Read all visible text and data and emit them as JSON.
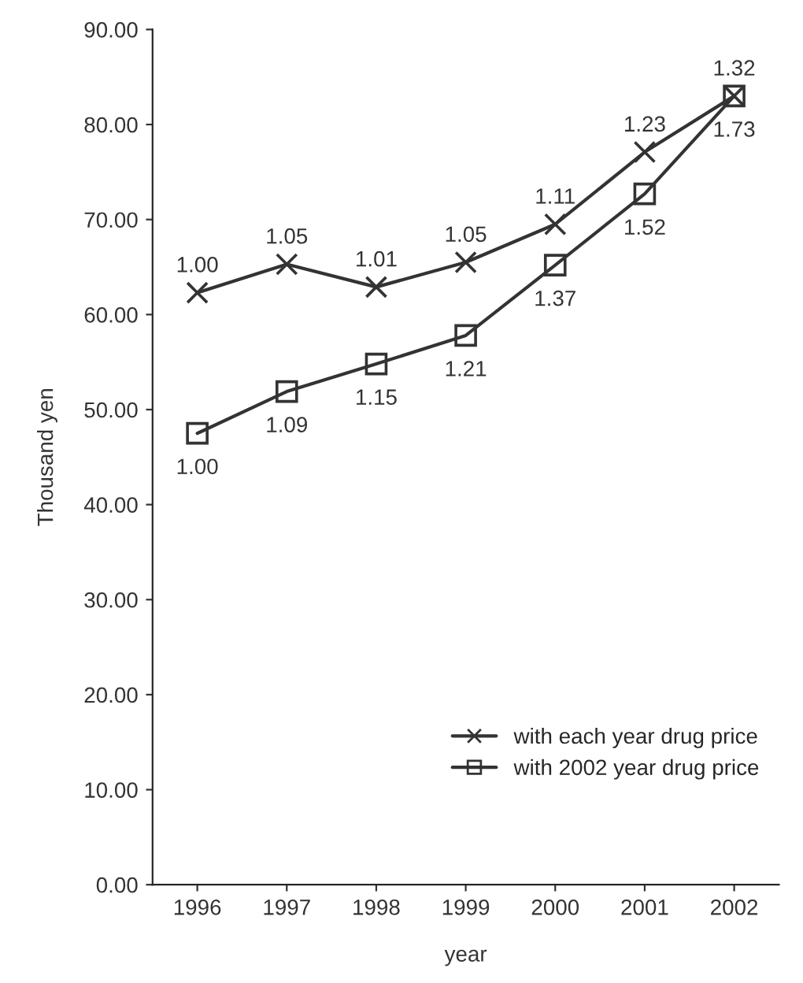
{
  "chart_data": {
    "type": "line",
    "xlabel": "year",
    "ylabel": "Thousand yen",
    "categories": [
      "1996",
      "1997",
      "1998",
      "1999",
      "2000",
      "2001",
      "2002"
    ],
    "series": [
      {
        "name": "with each year drug price",
        "color": "#333333",
        "marker": "cross",
        "values": [
          62.3,
          65.3,
          62.9,
          65.5,
          69.5,
          77.1,
          83.0
        ]
      },
      {
        "name": "with 2002 year drug price",
        "color": "#333333",
        "marker": "square",
        "values": [
          47.5,
          51.9,
          54.8,
          57.8,
          65.2,
          72.7,
          83.0
        ]
      }
    ],
    "ylim": [
      0,
      90
    ],
    "yticks": [
      {
        "value": 0,
        "label": "0.00"
      },
      {
        "value": 10,
        "label": "10.00"
      },
      {
        "value": 20,
        "label": "20.00"
      },
      {
        "value": 30,
        "label": "30.00"
      },
      {
        "value": 40,
        "label": "40.00"
      },
      {
        "value": 50,
        "label": "50.00"
      },
      {
        "value": 60,
        "label": "60.00"
      },
      {
        "value": 70,
        "label": "70.00"
      },
      {
        "value": 80,
        "label": "80.00"
      },
      {
        "value": 90,
        "label": "90.00"
      }
    ],
    "annotations": [
      {
        "text": "1.00",
        "x": "1996",
        "y": 62.3
      },
      {
        "text": "1.05",
        "x": "1997",
        "y": 65.3
      },
      {
        "text": "1.01",
        "x": "1998",
        "y": 62.9
      },
      {
        "text": "1.05",
        "x": "1999",
        "y": 65.5
      },
      {
        "text": "1.11",
        "x": "2000",
        "y": 69.5
      },
      {
        "text": "1.23",
        "x": "2001",
        "y": 77.1
      },
      {
        "text": "1.32",
        "x": "2002",
        "y": 83.0
      },
      {
        "text": "1.00",
        "x": "1996",
        "y": 47.5
      },
      {
        "text": "1.09",
        "x": "1997",
        "y": 51.9
      },
      {
        "text": "1.15",
        "x": "1998",
        "y": 54.8
      },
      {
        "text": "1.21",
        "x": "1999",
        "y": 57.8
      },
      {
        "text": "1.37",
        "x": "2000",
        "y": 65.2
      },
      {
        "text": "1.52",
        "x": "2001",
        "y": 72.7
      },
      {
        "text": "1.73",
        "x": "2002",
        "y": 83.0
      }
    ],
    "grid": false,
    "legend": "bottom right",
    "line_style": "solid"
  }
}
